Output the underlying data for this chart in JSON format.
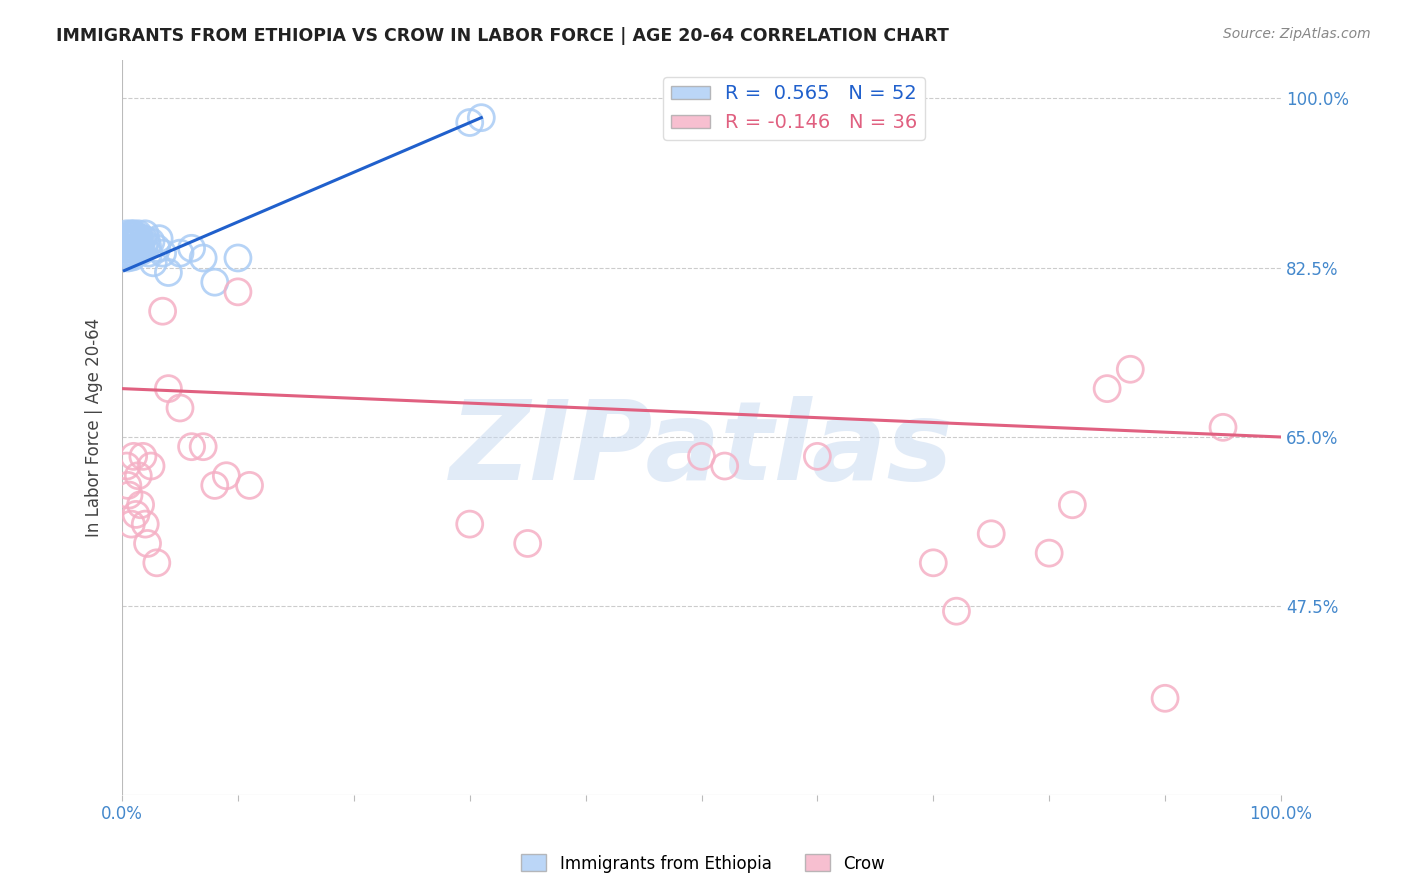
{
  "title": "IMMIGRANTS FROM ETHIOPIA VS CROW IN LABOR FORCE | AGE 20-64 CORRELATION CHART",
  "source": "Source: ZipAtlas.com",
  "ylabel": "In Labor Force | Age 20-64",
  "xlim": [
    0.0,
    1.0
  ],
  "ylim": [
    0.28,
    1.04
  ],
  "yticks": [
    0.475,
    0.65,
    0.825,
    1.0
  ],
  "ytick_labels": [
    "47.5%",
    "65.0%",
    "82.5%",
    "100.0%"
  ],
  "xtick_positions": [
    0.0,
    0.1,
    0.2,
    0.3,
    0.4,
    0.5,
    0.6,
    0.7,
    0.8,
    0.9,
    1.0
  ],
  "xtick_labels": [
    "0.0%",
    "",
    "",
    "",
    "",
    "",
    "",
    "",
    "",
    "",
    "100.0%"
  ],
  "blue_R": 0.565,
  "blue_N": 52,
  "pink_R": -0.146,
  "pink_N": 36,
  "blue_color": "#aaccf5",
  "pink_color": "#f5b0c5",
  "blue_line_color": "#2060cc",
  "pink_line_color": "#e06080",
  "background_color": "#ffffff",
  "grid_color": "#cccccc",
  "watermark": "ZIPatlas",
  "watermark_color": "#c5d8f0",
  "title_color": "#222222",
  "axis_label_color": "#444444",
  "tick_color_right": "#4488cc",
  "tick_color_bottom": "#4488cc",
  "blue_scatter_x": [
    0.002,
    0.003,
    0.003,
    0.004,
    0.004,
    0.005,
    0.005,
    0.005,
    0.006,
    0.006,
    0.007,
    0.007,
    0.007,
    0.008,
    0.008,
    0.008,
    0.009,
    0.009,
    0.009,
    0.01,
    0.01,
    0.01,
    0.011,
    0.011,
    0.012,
    0.012,
    0.013,
    0.013,
    0.014,
    0.015,
    0.015,
    0.016,
    0.017,
    0.018,
    0.019,
    0.02,
    0.021,
    0.022,
    0.023,
    0.025,
    0.027,
    0.03,
    0.032,
    0.035,
    0.04,
    0.05,
    0.06,
    0.07,
    0.08,
    0.1,
    0.3,
    0.31
  ],
  "blue_scatter_y": [
    0.845,
    0.85,
    0.855,
    0.84,
    0.86,
    0.835,
    0.845,
    0.855,
    0.838,
    0.852,
    0.84,
    0.848,
    0.858,
    0.842,
    0.85,
    0.86,
    0.836,
    0.845,
    0.855,
    0.84,
    0.852,
    0.86,
    0.843,
    0.855,
    0.847,
    0.858,
    0.842,
    0.852,
    0.86,
    0.845,
    0.856,
    0.848,
    0.842,
    0.855,
    0.847,
    0.86,
    0.853,
    0.848,
    0.84,
    0.852,
    0.83,
    0.845,
    0.855,
    0.84,
    0.82,
    0.84,
    0.845,
    0.835,
    0.81,
    0.835,
    0.975,
    0.98
  ],
  "pink_scatter_x": [
    0.004,
    0.005,
    0.006,
    0.008,
    0.01,
    0.012,
    0.014,
    0.016,
    0.018,
    0.02,
    0.022,
    0.025,
    0.03,
    0.035,
    0.04,
    0.05,
    0.06,
    0.07,
    0.08,
    0.09,
    0.1,
    0.11,
    0.3,
    0.35,
    0.5,
    0.52,
    0.6,
    0.7,
    0.72,
    0.75,
    0.8,
    0.82,
    0.85,
    0.87,
    0.9,
    0.95
  ],
  "pink_scatter_y": [
    0.62,
    0.6,
    0.59,
    0.56,
    0.63,
    0.57,
    0.61,
    0.58,
    0.63,
    0.56,
    0.54,
    0.62,
    0.52,
    0.78,
    0.7,
    0.68,
    0.64,
    0.64,
    0.6,
    0.61,
    0.8,
    0.6,
    0.56,
    0.54,
    0.63,
    0.62,
    0.63,
    0.52,
    0.47,
    0.55,
    0.53,
    0.58,
    0.7,
    0.72,
    0.38,
    0.66
  ],
  "blue_trend_x": [
    0.002,
    0.31
  ],
  "blue_trend_y": [
    0.822,
    0.98
  ],
  "pink_trend_x": [
    0.0,
    1.0
  ],
  "pink_trend_y": [
    0.7,
    0.65
  ]
}
